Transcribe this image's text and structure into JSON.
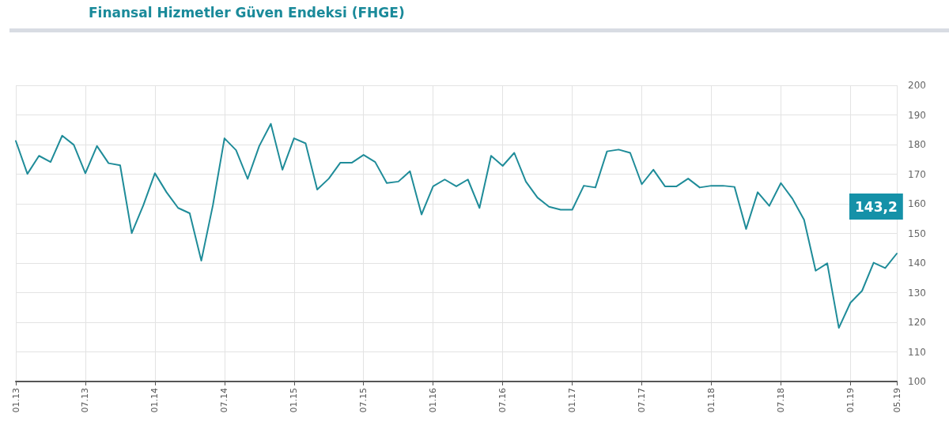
{
  "chart_data": {
    "type": "line",
    "title": "Finansal Hizmetler Güven Endeksi (FHGE)",
    "categories": [
      "01.13",
      null,
      null,
      null,
      null,
      null,
      "07.13",
      null,
      null,
      null,
      null,
      null,
      "01.14",
      null,
      null,
      null,
      null,
      null,
      "07.14",
      null,
      null,
      null,
      null,
      null,
      "01.15",
      null,
      null,
      null,
      null,
      null,
      "07.15",
      null,
      null,
      null,
      null,
      null,
      "01.16",
      null,
      null,
      null,
      null,
      null,
      "07.16",
      null,
      null,
      null,
      null,
      null,
      "01.17",
      null,
      null,
      null,
      null,
      null,
      "07.17",
      null,
      null,
      null,
      null,
      null,
      "01.18",
      null,
      null,
      null,
      null,
      null,
      "07.18",
      null,
      null,
      null,
      null,
      null,
      "01.19",
      null,
      null,
      null,
      "05.19"
    ],
    "series": [
      {
        "color": "#1f8c99",
        "values": [
          181.2,
          170.1,
          176.2,
          174.1,
          183.0,
          179.9,
          170.3,
          179.5,
          173.7,
          173.0,
          150.1,
          159.5,
          170.3,
          163.9,
          158.6,
          156.8,
          140.8,
          159.5,
          182.1,
          178.1,
          168.4,
          179.5,
          187.0,
          171.5,
          182.1,
          180.4,
          164.8,
          168.5,
          173.9,
          173.9,
          176.5,
          174.1,
          167.0,
          167.5,
          171.0,
          156.4,
          165.9,
          168.2,
          165.9,
          168.2,
          158.6,
          176.2,
          172.8,
          177.2,
          167.5,
          162.1,
          159.0,
          158.0,
          158.0,
          166.1,
          165.5,
          177.7,
          178.3,
          177.2,
          166.6,
          171.5,
          165.9,
          165.9,
          168.5,
          165.5,
          166.1,
          166.1,
          165.7,
          151.5,
          163.9,
          159.3,
          167.0,
          161.7,
          154.6,
          137.4,
          139.9,
          118.1,
          126.6,
          130.6,
          140.1,
          138.3,
          143.2
        ]
      }
    ],
    "annotations": [
      "143,2"
    ],
    "ylim": [
      100,
      200
    ],
    "yticks": [
      100,
      110,
      120,
      130,
      140,
      150,
      160,
      170,
      180,
      190,
      200
    ],
    "grid": true,
    "marker": "none",
    "line_style": "solid"
  }
}
